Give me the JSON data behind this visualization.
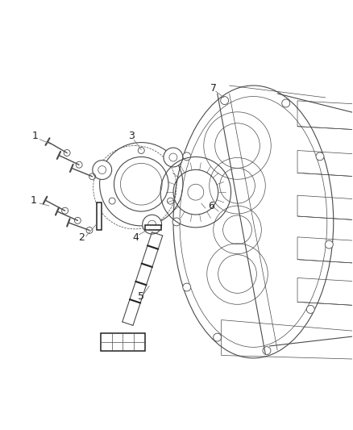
{
  "bg_color": "#ffffff",
  "line_color": "#4a4a4a",
  "dark_line": "#222222",
  "fig_width": 4.38,
  "fig_height": 5.33,
  "dpi": 100,
  "label_fontsize": 9,
  "label_color": "#222222"
}
